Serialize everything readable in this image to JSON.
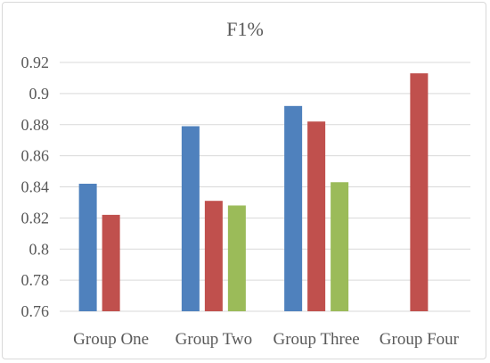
{
  "chart_data": {
    "type": "bar",
    "title": "F1%",
    "categories": [
      "Group One",
      "Group Two",
      "Group Three",
      "Group Four"
    ],
    "series": [
      {
        "values": [
          0.842,
          0.879,
          0.892,
          null
        ],
        "color": "#4f81bd"
      },
      {
        "values": [
          0.822,
          0.831,
          0.882,
          0.913
        ],
        "color": "#c0504d"
      },
      {
        "values": [
          null,
          0.828,
          0.843,
          null
        ],
        "color": "#9bbb59"
      }
    ],
    "ylim": [
      0.76,
      0.92
    ],
    "yticks": [
      "0.76",
      "0.78",
      "0.8",
      "0.82",
      "0.84",
      "0.86",
      "0.88",
      "0.9",
      "0.92"
    ],
    "grid": true
  }
}
